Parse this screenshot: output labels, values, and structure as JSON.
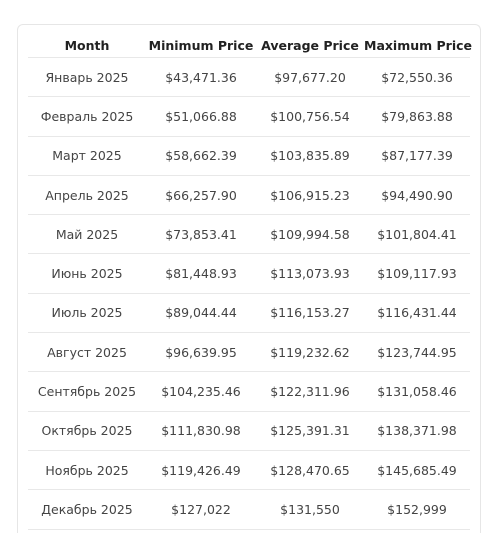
{
  "table": {
    "headers": [
      "Month",
      "Minimum Price",
      "Average Price",
      "Maximum Price"
    ],
    "rows": [
      [
        "Январь 2025",
        "$43,471.36",
        "$97,677.20",
        "$72,550.36"
      ],
      [
        "Февраль 2025",
        "$51,066.88",
        "$100,756.54",
        "$79,863.88"
      ],
      [
        "Март 2025",
        "$58,662.39",
        "$103,835.89",
        "$87,177.39"
      ],
      [
        "Апрель 2025",
        "$66,257.90",
        "$106,915.23",
        "$94,490.90"
      ],
      [
        "Май 2025",
        "$73,853.41",
        "$109,994.58",
        "$101,804.41"
      ],
      [
        "Июнь 2025",
        "$81,448.93",
        "$113,073.93",
        "$109,117.93"
      ],
      [
        "Июль 2025",
        "$89,044.44",
        "$116,153.27",
        "$116,431.44"
      ],
      [
        "Август 2025",
        "$96,639.95",
        "$119,232.62",
        "$123,744.95"
      ],
      [
        "Сентябрь 2025",
        "$104,235.46",
        "$122,311.96",
        "$131,058.46"
      ],
      [
        "Октябрь 2025",
        "$111,830.98",
        "$125,391.31",
        "$138,371.98"
      ],
      [
        "Ноябрь 2025",
        "$119,426.49",
        "$128,470.65",
        "$145,685.49"
      ],
      [
        "Декабрь 2025",
        "$127,022",
        "$131,550",
        "$152,999"
      ]
    ]
  }
}
